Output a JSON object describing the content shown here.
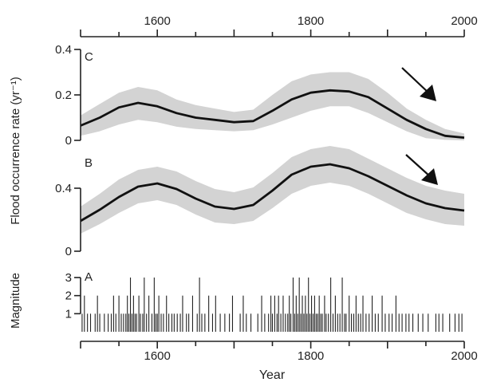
{
  "chart_data": {
    "type": "line",
    "x_axis": {
      "label": "Year",
      "range": [
        1500,
        2000
      ],
      "major_ticks": [
        1600,
        1800,
        2000
      ],
      "minor_step": 50,
      "tick_labels": [
        "1600",
        "1800",
        "2000"
      ]
    },
    "shared_ylabel": "Flood occurrence rate (yr⁻¹)",
    "panels": [
      {
        "label": "C",
        "ylim": [
          0,
          0.4
        ],
        "ticks": [
          0,
          0.2,
          0.4
        ],
        "tick_labels": [
          "0",
          "0.2",
          "0.4"
        ],
        "trend_arrow": "down",
        "series": {
          "x": [
            1500,
            1525,
            1550,
            1575,
            1600,
            1625,
            1650,
            1675,
            1700,
            1725,
            1750,
            1775,
            1800,
            1825,
            1850,
            1875,
            1900,
            1925,
            1950,
            1975,
            2000
          ],
          "y": [
            0.065,
            0.1,
            0.145,
            0.165,
            0.15,
            0.12,
            0.1,
            0.09,
            0.08,
            0.085,
            0.13,
            0.18,
            0.21,
            0.22,
            0.215,
            0.19,
            0.14,
            0.09,
            0.05,
            0.02,
            0.012
          ],
          "lower": [
            0.02,
            0.04,
            0.07,
            0.09,
            0.08,
            0.06,
            0.05,
            0.045,
            0.04,
            0.045,
            0.07,
            0.1,
            0.13,
            0.15,
            0.15,
            0.12,
            0.08,
            0.04,
            0.01,
            0.002,
            0.0
          ],
          "upper": [
            0.11,
            0.16,
            0.21,
            0.235,
            0.22,
            0.18,
            0.155,
            0.14,
            0.125,
            0.135,
            0.2,
            0.26,
            0.29,
            0.3,
            0.3,
            0.27,
            0.21,
            0.14,
            0.09,
            0.05,
            0.03
          ]
        }
      },
      {
        "label": "B",
        "ylim": [
          0,
          0.6
        ],
        "ticks": [
          0,
          0.4
        ],
        "tick_labels": [
          "0",
          "0.4"
        ],
        "trend_arrow": "down",
        "series": {
          "x": [
            1500,
            1525,
            1550,
            1575,
            1600,
            1625,
            1650,
            1675,
            1700,
            1725,
            1750,
            1775,
            1800,
            1825,
            1850,
            1875,
            1900,
            1925,
            1950,
            1975,
            2000
          ],
          "y": [
            0.19,
            0.26,
            0.34,
            0.405,
            0.425,
            0.39,
            0.33,
            0.28,
            0.265,
            0.29,
            0.38,
            0.48,
            0.53,
            0.545,
            0.52,
            0.47,
            0.41,
            0.35,
            0.3,
            0.27,
            0.255
          ],
          "lower": [
            0.11,
            0.17,
            0.24,
            0.3,
            0.32,
            0.29,
            0.23,
            0.18,
            0.17,
            0.19,
            0.27,
            0.36,
            0.41,
            0.43,
            0.41,
            0.36,
            0.3,
            0.24,
            0.2,
            0.17,
            0.16
          ],
          "upper": [
            0.28,
            0.36,
            0.45,
            0.51,
            0.53,
            0.5,
            0.44,
            0.39,
            0.37,
            0.4,
            0.49,
            0.59,
            0.64,
            0.66,
            0.64,
            0.58,
            0.52,
            0.46,
            0.41,
            0.38,
            0.36
          ]
        }
      },
      {
        "label": "A",
        "type": "event_bars",
        "ylabel": "Magnitude",
        "ylim": [
          0,
          3
        ],
        "ticks": [
          1,
          2,
          3
        ],
        "tick_labels": [
          "1",
          "2",
          "3"
        ],
        "events": [
          [
            1502,
            1
          ],
          [
            1505,
            2
          ],
          [
            1509,
            1
          ],
          [
            1513,
            1
          ],
          [
            1519,
            1
          ],
          [
            1522,
            2
          ],
          [
            1525,
            1
          ],
          [
            1531,
            1
          ],
          [
            1536,
            1
          ],
          [
            1540,
            1
          ],
          [
            1543,
            2
          ],
          [
            1546,
            1
          ],
          [
            1550,
            2
          ],
          [
            1553,
            1
          ],
          [
            1556,
            1
          ],
          [
            1559,
            1
          ],
          [
            1561,
            2
          ],
          [
            1563,
            1
          ],
          [
            1565,
            3
          ],
          [
            1567,
            1
          ],
          [
            1569,
            2
          ],
          [
            1571,
            1
          ],
          [
            1573,
            1
          ],
          [
            1576,
            2
          ],
          [
            1578,
            1
          ],
          [
            1581,
            1
          ],
          [
            1583,
            3
          ],
          [
            1586,
            1
          ],
          [
            1589,
            2
          ],
          [
            1593,
            1
          ],
          [
            1596,
            3
          ],
          [
            1598,
            1
          ],
          [
            1600,
            1
          ],
          [
            1602,
            2
          ],
          [
            1605,
            1
          ],
          [
            1608,
            1
          ],
          [
            1612,
            2
          ],
          [
            1615,
            1
          ],
          [
            1619,
            1
          ],
          [
            1622,
            1
          ],
          [
            1626,
            1
          ],
          [
            1630,
            1
          ],
          [
            1633,
            2
          ],
          [
            1638,
            1
          ],
          [
            1641,
            1
          ],
          [
            1646,
            2
          ],
          [
            1652,
            1
          ],
          [
            1655,
            3
          ],
          [
            1658,
            1
          ],
          [
            1662,
            1
          ],
          [
            1667,
            2
          ],
          [
            1672,
            1
          ],
          [
            1676,
            2
          ],
          [
            1682,
            1
          ],
          [
            1688,
            1
          ],
          [
            1694,
            1
          ],
          [
            1698,
            2
          ],
          [
            1708,
            1
          ],
          [
            1712,
            2
          ],
          [
            1716,
            1
          ],
          [
            1722,
            1
          ],
          [
            1731,
            1
          ],
          [
            1736,
            2
          ],
          [
            1740,
            1
          ],
          [
            1745,
            1
          ],
          [
            1748,
            2
          ],
          [
            1750,
            1
          ],
          [
            1753,
            2
          ],
          [
            1756,
            1
          ],
          [
            1758,
            2
          ],
          [
            1761,
            1
          ],
          [
            1764,
            2
          ],
          [
            1767,
            1
          ],
          [
            1770,
            1
          ],
          [
            1772,
            2
          ],
          [
            1774,
            1
          ],
          [
            1777,
            3
          ],
          [
            1779,
            1
          ],
          [
            1781,
            2
          ],
          [
            1783,
            1
          ],
          [
            1785,
            3
          ],
          [
            1787,
            1
          ],
          [
            1789,
            2
          ],
          [
            1791,
            1
          ],
          [
            1793,
            2
          ],
          [
            1795,
            1
          ],
          [
            1797,
            3
          ],
          [
            1799,
            1
          ],
          [
            1801,
            2
          ],
          [
            1803,
            1
          ],
          [
            1805,
            2
          ],
          [
            1807,
            1
          ],
          [
            1809,
            1
          ],
          [
            1811,
            2
          ],
          [
            1813,
            1
          ],
          [
            1815,
            1
          ],
          [
            1818,
            2
          ],
          [
            1820,
            1
          ],
          [
            1823,
            1
          ],
          [
            1826,
            3
          ],
          [
            1829,
            1
          ],
          [
            1832,
            2
          ],
          [
            1835,
            1
          ],
          [
            1838,
            1
          ],
          [
            1841,
            3
          ],
          [
            1844,
            1
          ],
          [
            1846,
            1
          ],
          [
            1850,
            2
          ],
          [
            1853,
            1
          ],
          [
            1856,
            1
          ],
          [
            1859,
            2
          ],
          [
            1862,
            1
          ],
          [
            1865,
            1
          ],
          [
            1868,
            2
          ],
          [
            1872,
            1
          ],
          [
            1876,
            1
          ],
          [
            1880,
            2
          ],
          [
            1884,
            1
          ],
          [
            1888,
            1
          ],
          [
            1893,
            2
          ],
          [
            1897,
            1
          ],
          [
            1902,
            1
          ],
          [
            1906,
            1
          ],
          [
            1911,
            2
          ],
          [
            1915,
            1
          ],
          [
            1919,
            1
          ],
          [
            1924,
            1
          ],
          [
            1928,
            1
          ],
          [
            1933,
            1
          ],
          [
            1940,
            1
          ],
          [
            1946,
            1
          ],
          [
            1953,
            1
          ],
          [
            1963,
            1
          ],
          [
            1967,
            1
          ],
          [
            1972,
            1
          ],
          [
            1981,
            1
          ],
          [
            1988,
            1
          ],
          [
            1993,
            1
          ],
          [
            1997,
            1
          ]
        ]
      }
    ]
  }
}
